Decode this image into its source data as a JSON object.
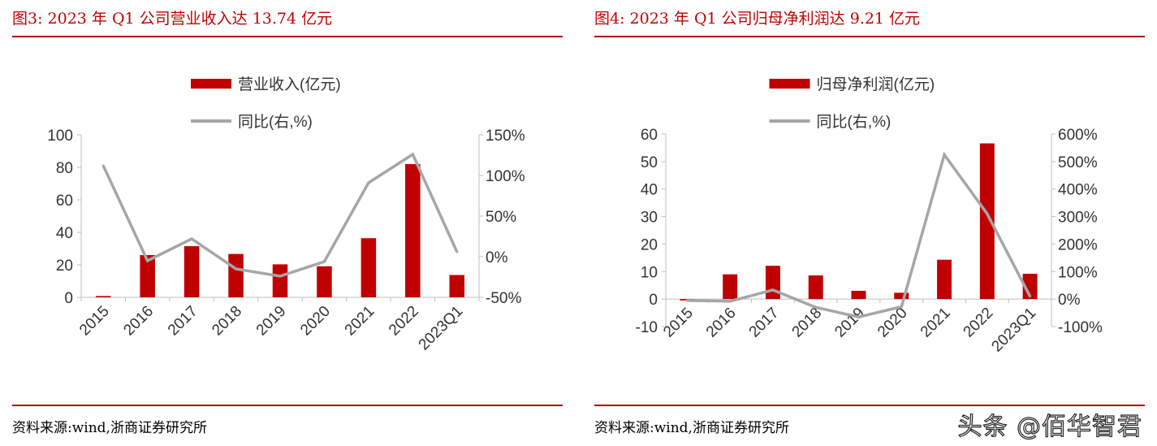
{
  "panels": [
    {
      "title": "图3:  2023 年 Q1 公司营业收入达 13.74 亿元",
      "source": "资料来源:wind,浙商证券研究所"
    },
    {
      "title": "图4:  2023 年 Q1 公司归母净利润达 9.21 亿元",
      "source": "资料来源:wind,浙商证券研究所"
    }
  ],
  "watermark": "头条 @佰华智君",
  "colors": {
    "bar": "#c00000",
    "line": "#a6a6a6",
    "title": "#c00000"
  },
  "chart_data": [
    {
      "type": "bar+line",
      "categories": [
        "2015",
        "2016",
        "2017",
        "2018",
        "2019",
        "2020",
        "2021",
        "2022",
        "2023Q1"
      ],
      "series": [
        {
          "name": "营业收入(亿元)",
          "type": "bar",
          "axis": "left",
          "values": [
            0.8,
            26.0,
            31.5,
            26.7,
            20.3,
            19.1,
            36.4,
            82.0,
            13.74
          ]
        },
        {
          "name": "同比(右,%)",
          "type": "line",
          "axis": "right",
          "values": [
            112,
            -5,
            22,
            -15,
            -24,
            -6,
            91,
            126,
            6
          ]
        }
      ],
      "ylim": [
        0,
        100
      ],
      "yticks": [
        0,
        20,
        40,
        60,
        80,
        100
      ],
      "y2lim": [
        -50,
        150
      ],
      "y2ticks": [
        "-50%",
        "0%",
        "50%",
        "100%",
        "150%"
      ],
      "y2vals": [
        -50,
        0,
        50,
        100,
        150
      ],
      "legend": "top-center"
    },
    {
      "type": "bar+line",
      "categories": [
        "2015",
        "2016",
        "2017",
        "2018",
        "2019",
        "2020",
        "2021",
        "2022",
        "2023Q1"
      ],
      "series": [
        {
          "name": "归母净利润(亿元)",
          "type": "bar",
          "axis": "left",
          "values": [
            -0.5,
            9.0,
            12.1,
            8.6,
            3.0,
            2.3,
            14.3,
            56.6,
            9.21
          ]
        },
        {
          "name": "同比(右,%)",
          "type": "line",
          "axis": "right",
          "values": [
            -5,
            -8,
            33,
            -30,
            -65,
            -28,
            525,
            310,
            10
          ]
        }
      ],
      "ylim": [
        -10,
        60
      ],
      "yticks": [
        -10,
        0,
        10,
        20,
        30,
        40,
        50,
        60
      ],
      "y2lim": [
        -100,
        600
      ],
      "y2ticks": [
        "-100%",
        "0%",
        "100%",
        "200%",
        "300%",
        "400%",
        "500%",
        "600%"
      ],
      "y2vals": [
        -100,
        0,
        100,
        200,
        300,
        400,
        500,
        600
      ],
      "legend": "top-center"
    }
  ]
}
